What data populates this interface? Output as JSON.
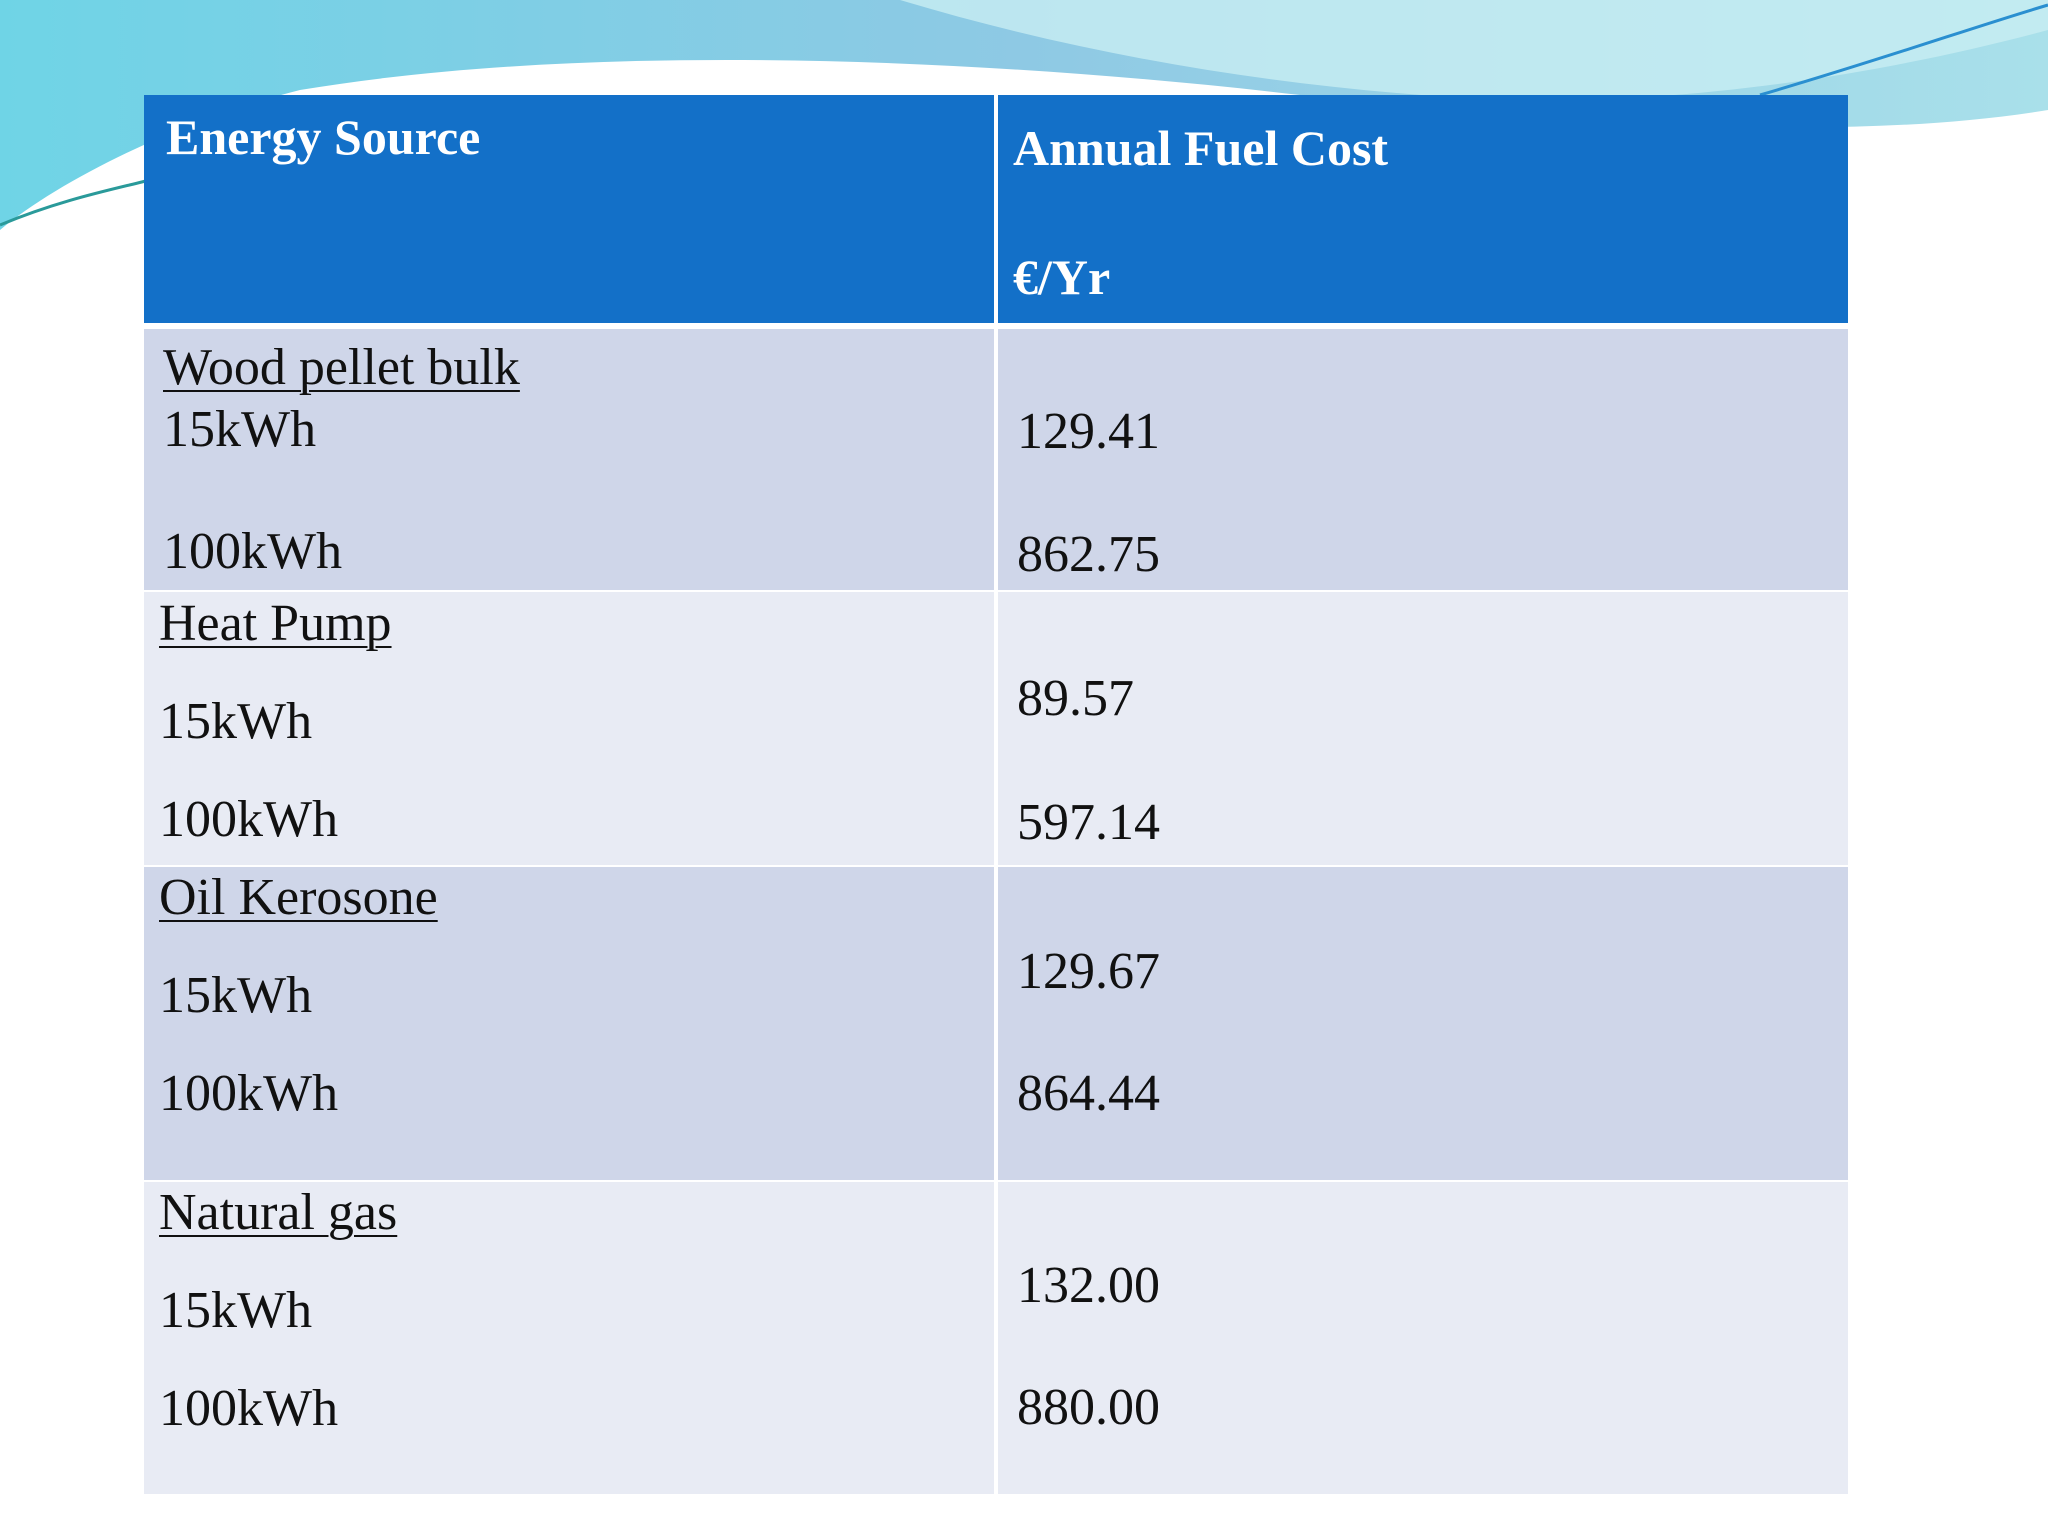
{
  "table": {
    "header": [
      "Energy Source",
      "Annual Fuel Cost",
      "€/Yr"
    ],
    "rows": [
      {
        "source": "Wood pellet bulk",
        "items": [
          {
            "label": "15kWh",
            "cost": "129.41"
          },
          {
            "label": "100kWh",
            "cost": "862.75"
          }
        ]
      },
      {
        "source": "Heat Pump",
        "items": [
          {
            "label": "15kWh",
            "cost": "89.57"
          },
          {
            "label": "100kWh",
            "cost": "597.14"
          }
        ]
      },
      {
        "source": "Oil Kerosone",
        "items": [
          {
            "label": "15kWh",
            "cost": "129.67"
          },
          {
            "label": "100kWh",
            "cost": "864.44"
          }
        ]
      },
      {
        "source": "Natural gas",
        "items": [
          {
            "label": "15kWh",
            "cost": "132.00"
          },
          {
            "label": "100kWh",
            "cost": "880.00"
          }
        ]
      }
    ]
  }
}
